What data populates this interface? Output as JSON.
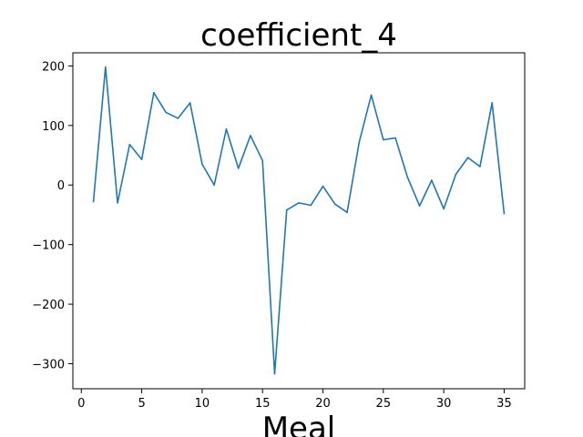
{
  "chart_data": {
    "type": "line",
    "title": "coefficient_4",
    "xlabel": "Meal",
    "ylabel": "",
    "xlim": [
      -0.7,
      36.7
    ],
    "ylim": [
      -342,
      222
    ],
    "xticks": [
      0,
      5,
      10,
      15,
      20,
      25,
      30,
      35
    ],
    "yticks": [
      -300,
      -200,
      -100,
      0,
      100,
      200
    ],
    "grid": false,
    "legend": false,
    "series_color": "#1f77b4",
    "series": [
      {
        "x": [
          1,
          2,
          3,
          4,
          5,
          6,
          7,
          8,
          9,
          10,
          11,
          12,
          13,
          14,
          15,
          16,
          17,
          18,
          19,
          20,
          21,
          22,
          23,
          24,
          25,
          26,
          27,
          28,
          29,
          30,
          31,
          32,
          33,
          34,
          35
        ],
        "values": [
          -28,
          198,
          -30,
          68,
          43,
          155,
          122,
          112,
          138,
          35,
          0,
          94,
          28,
          83,
          41,
          -317,
          -42,
          -30,
          -34,
          -2,
          -32,
          -46,
          72,
          151,
          76,
          79,
          13,
          -35,
          8,
          -40,
          18,
          46,
          31,
          138,
          -48
        ]
      }
    ]
  }
}
